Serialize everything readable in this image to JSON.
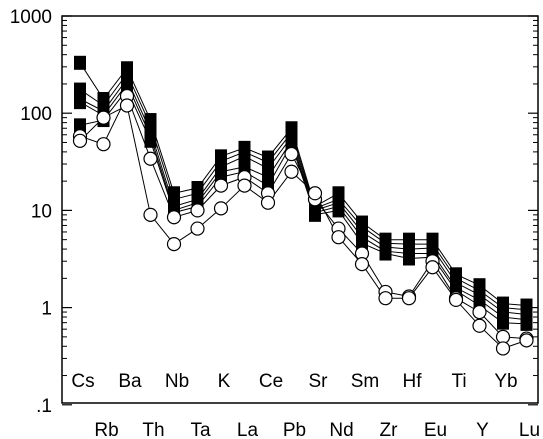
{
  "chart_data": {
    "type": "line",
    "title": "",
    "xlabel": "",
    "ylabel": "",
    "yscale": "log",
    "ylim": [
      0.1,
      1000
    ],
    "y_tick_labels": [
      "1000",
      "100",
      "10",
      "1",
      ".1"
    ],
    "grid": false,
    "legend": "none",
    "categories": [
      "Cs",
      "Rb",
      "Ba",
      "Th",
      "Nb",
      "Ta",
      "K",
      "La",
      "Ce",
      "Pb",
      "Sr",
      "Nd",
      "Sm",
      "Zr",
      "Hf",
      "Eu",
      "Ti",
      "Y",
      "Yb",
      "Lu"
    ],
    "series": [
      {
        "marker": "square",
        "values": [
          330,
          140,
          290,
          85,
          15,
          17,
          36,
          44,
          35,
          70,
          11,
          15,
          7.5,
          5.0,
          5.0,
          5.0,
          2.2,
          1.7,
          1.1,
          1.05
        ]
      },
      {
        "marker": "square",
        "values": [
          175,
          120,
          255,
          75,
          13,
          15,
          32,
          40,
          31,
          63,
          10.5,
          13,
          6.8,
          4.6,
          4.5,
          4.5,
          2.0,
          1.5,
          1.0,
          0.95
        ]
      },
      {
        "marker": "square",
        "values": [
          140,
          105,
          225,
          65,
          11,
          13,
          28,
          36,
          27,
          57,
          10,
          12,
          6.0,
          4.2,
          4.0,
          4.1,
          1.8,
          1.35,
          0.9,
          0.85
        ]
      },
      {
        "marker": "square",
        "values": [
          130,
          95,
          200,
          58,
          10,
          12,
          25,
          28,
          22,
          52,
          9.5,
          11,
          5.3,
          3.8,
          3.6,
          3.6,
          1.6,
          1.2,
          0.8,
          0.75
        ]
      },
      {
        "marker": "square",
        "values": [
          75,
          85,
          175,
          52,
          9.5,
          11,
          22,
          25,
          18,
          48,
          9,
          10,
          4.6,
          3.6,
          3.2,
          3.3,
          1.5,
          1.05,
          0.7,
          0.68
        ]
      },
      {
        "marker": "circle",
        "values": [
          58,
          48,
          150,
          34,
          8.5,
          10,
          18,
          22,
          15,
          38,
          13,
          6.5,
          3.6,
          1.45,
          1.3,
          3.0,
          1.25,
          0.9,
          0.5,
          0.48
        ]
      },
      {
        "marker": "circle",
        "values": [
          52,
          90,
          120,
          9.0,
          4.5,
          6.5,
          10.5,
          18,
          12,
          25,
          15,
          5.3,
          2.8,
          1.25,
          1.25,
          2.6,
          1.2,
          0.65,
          0.38,
          0.46
        ]
      }
    ]
  }
}
